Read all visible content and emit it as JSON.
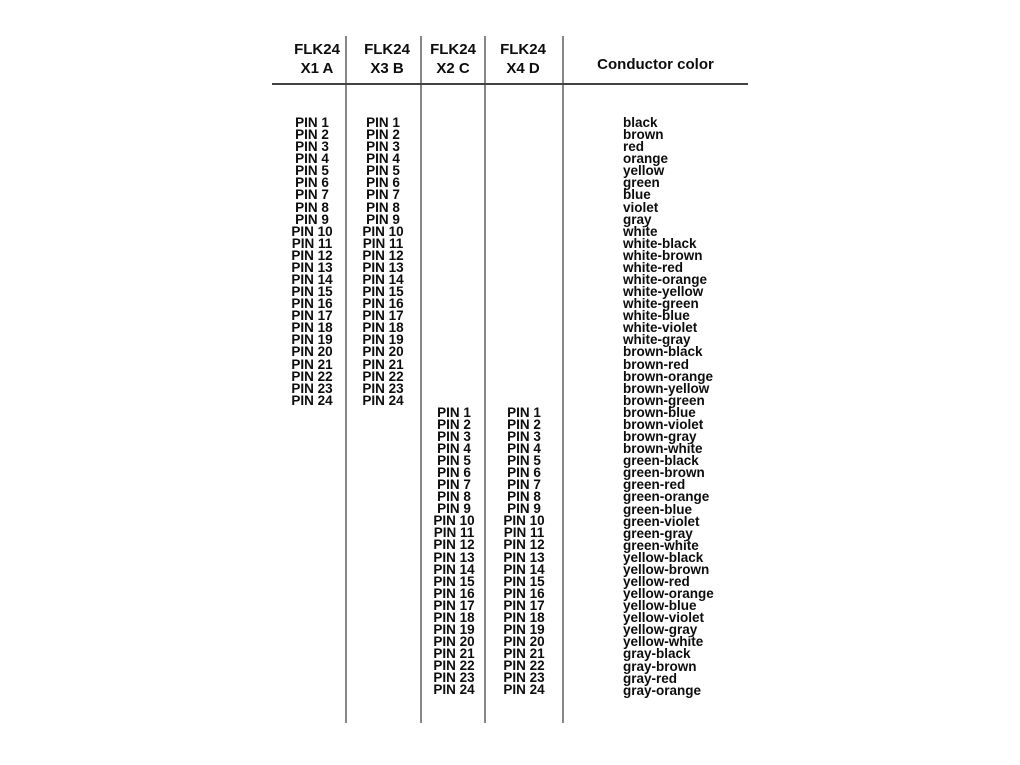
{
  "document": {
    "columns": {
      "x1a": {
        "header_line1": "FLK24",
        "header_line2": "X1 A"
      },
      "x3b": {
        "header_line1": "FLK24",
        "header_line2": "X3 B"
      },
      "x2c": {
        "header_line1": "FLK24",
        "header_line2": "X2 C"
      },
      "x4d": {
        "header_line1": "FLK24",
        "header_line2": "X4 D"
      },
      "conductor": {
        "header": "Conductor color"
      }
    },
    "pin_labels": [
      "PIN 1",
      "PIN 2",
      "PIN 3",
      "PIN 4",
      "PIN 5",
      "PIN 6",
      "PIN 7",
      "PIN 8",
      "PIN 9",
      "PIN 10",
      "PIN 11",
      "PIN 12",
      "PIN 13",
      "PIN 14",
      "PIN 15",
      "PIN 16",
      "PIN 17",
      "PIN 18",
      "PIN 19",
      "PIN 20",
      "PIN 21",
      "PIN 22",
      "PIN 23",
      "PIN 24"
    ],
    "conductor_colors": [
      "black",
      "brown",
      "red",
      "orange",
      "yellow",
      "green",
      "blue",
      "violet",
      "gray",
      "white",
      "white-black",
      "white-brown",
      "white-red",
      "white-orange",
      "white-yellow",
      "white-green",
      "white-blue",
      "white-violet",
      "white-gray",
      "brown-black",
      "brown-red",
      "brown-orange",
      "brown-yellow",
      "brown-green",
      "brown-blue",
      "brown-violet",
      "brown-gray",
      "brown-white",
      "green-black",
      "green-brown",
      "green-red",
      "green-orange",
      "green-blue",
      "green-violet",
      "green-gray",
      "green-white",
      "yellow-black",
      "yellow-brown",
      "yellow-red",
      "yellow-orange",
      "yellow-blue",
      "yellow-violet",
      "yellow-gray",
      "yellow-white",
      "gray-black",
      "gray-brown",
      "gray-red",
      "gray-orange"
    ],
    "colors": {
      "background": "#ffffff",
      "text": "#0d0d0d",
      "header_rule": "#424242",
      "column_rule": "#878787"
    }
  }
}
